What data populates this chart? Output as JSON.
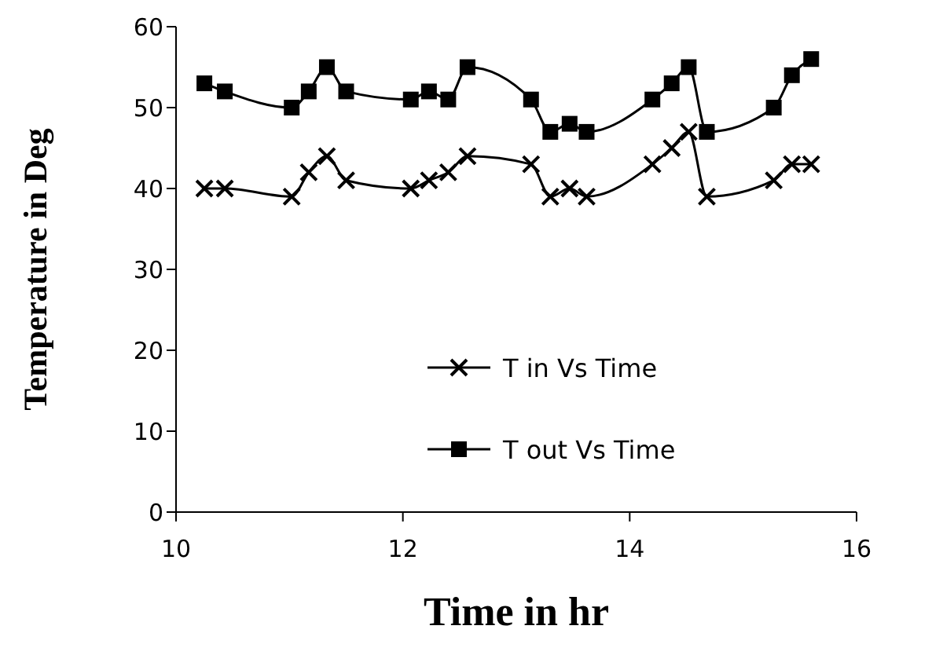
{
  "chart_data": {
    "type": "line",
    "xlabel": "Time in hr",
    "ylabel": "Temperature in Deg",
    "xlim": [
      10,
      16
    ],
    "xticks": [
      10,
      12,
      14,
      16
    ],
    "ylim": [
      0,
      60
    ],
    "yticks": [
      0,
      10,
      20,
      30,
      40,
      50,
      60
    ],
    "x": [
      10.25,
      10.43,
      11.02,
      11.17,
      11.33,
      11.5,
      12.07,
      12.23,
      12.4,
      12.57,
      13.13,
      13.3,
      13.47,
      13.62,
      14.2,
      14.37,
      14.52,
      14.68,
      15.27,
      15.43,
      15.6
    ],
    "series": [
      {
        "name": "T in Vs Time",
        "color": "#000000",
        "marker": "cross",
        "values": [
          40,
          40,
          39,
          42,
          44,
          41,
          40,
          41,
          42,
          44,
          43,
          39,
          40,
          39,
          43,
          45,
          47,
          39,
          41,
          43,
          43
        ]
      },
      {
        "name": "T out Vs Time",
        "color": "#000000",
        "marker": "square",
        "values": [
          53,
          52,
          50,
          52,
          55,
          52,
          51,
          52,
          51,
          55,
          51,
          47,
          48,
          47,
          51,
          53,
          55,
          47,
          50,
          54,
          56
        ]
      }
    ],
    "grid": false,
    "legend": "bottom",
    "line_style": "solid"
  }
}
